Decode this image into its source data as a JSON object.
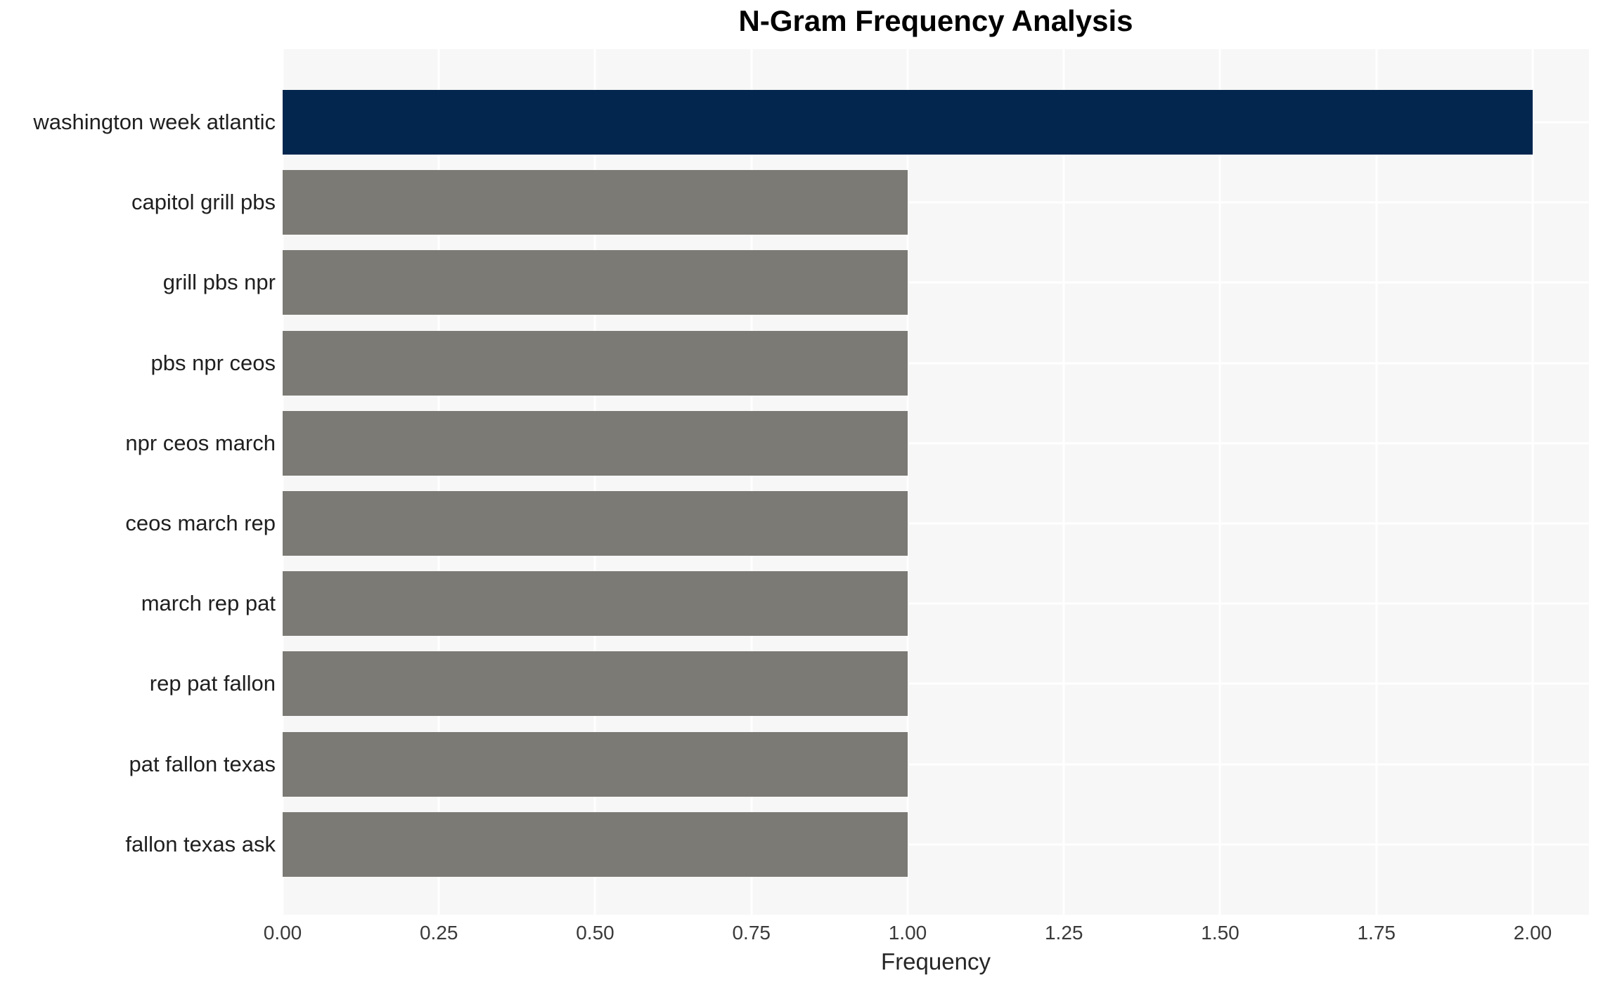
{
  "chart_data": {
    "type": "bar",
    "orientation": "horizontal",
    "title": "N-Gram Frequency Analysis",
    "xlabel": "Frequency",
    "ylabel": "",
    "categories": [
      "washington week atlantic",
      "capitol grill pbs",
      "grill pbs npr",
      "pbs npr ceos",
      "npr ceos march",
      "ceos march rep",
      "march rep pat",
      "rep pat fallon",
      "pat fallon texas",
      "fallon texas ask"
    ],
    "values": [
      2,
      1,
      1,
      1,
      1,
      1,
      1,
      1,
      1,
      1
    ],
    "bar_colors": [
      "#02264e",
      "#7b7a75",
      "#7b7a75",
      "#7b7a75",
      "#7b7a75",
      "#7b7a75",
      "#7b7a75",
      "#7b7a75",
      "#7b7a75",
      "#7b7a75"
    ],
    "xticks": [
      {
        "value": 0.0,
        "label": "0.00"
      },
      {
        "value": 0.25,
        "label": "0.25"
      },
      {
        "value": 0.5,
        "label": "0.50"
      },
      {
        "value": 0.75,
        "label": "0.75"
      },
      {
        "value": 1.0,
        "label": "1.00"
      },
      {
        "value": 1.25,
        "label": "1.25"
      },
      {
        "value": 1.5,
        "label": "1.50"
      },
      {
        "value": 1.75,
        "label": "1.75"
      },
      {
        "value": 2.0,
        "label": "2.00"
      }
    ],
    "xlim": [
      0,
      2.09
    ],
    "grid": true,
    "legend": false,
    "colors": {
      "highlight_bar": "#02264e",
      "default_bar": "#7b7a75",
      "plot_background": "#f7f7f7",
      "gridline": "#ffffff",
      "figure_background": "#ffffff",
      "title_text": "#000000",
      "category_text": "#1f1f1f",
      "tick_text": "#3a3a3a",
      "axis_label_text": "#262626"
    }
  }
}
